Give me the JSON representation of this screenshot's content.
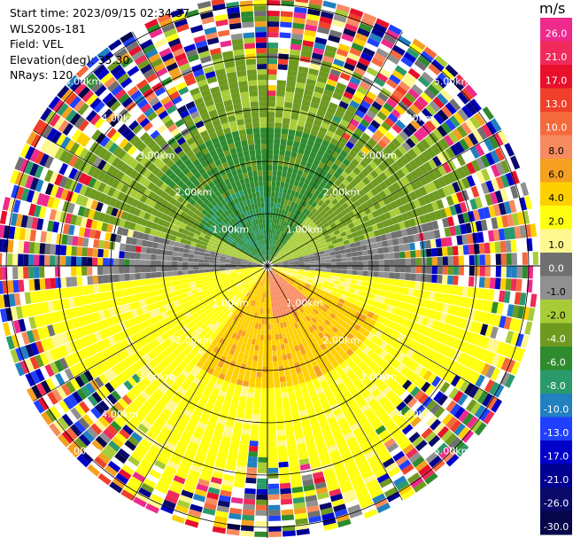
{
  "info": {
    "start_time": "Start time: 2023/09/15 02:34:37",
    "station": "WLS200s-181",
    "field": "Field: VEL",
    "elevation": "Elevation(deg): 35.30",
    "nrays": "NRays: 120"
  },
  "chart_data": {
    "type": "ppi",
    "field": "VEL",
    "units": "m/s",
    "nrays": 120,
    "range_rings_km": [
      1.0,
      2.0,
      3.0,
      4.0,
      5.0
    ],
    "ring_label_suffix": "km",
    "colorbar": {
      "unit": "m/s",
      "ticks": [
        "26.0",
        "21.0",
        "17.0",
        "13.0",
        "10.0",
        "8.0",
        "6.0",
        "4.0",
        "2.0",
        "1.0",
        "0.0",
        "-1.0",
        "-2.0",
        "-4.0",
        "-6.0",
        "-8.0",
        "-10.0",
        "-13.0",
        "-17.0",
        "-21.0",
        "-26.0",
        "-30.0"
      ],
      "colors": [
        "#ee2a8c",
        "#f02a5a",
        "#e8102c",
        "#f0402a",
        "#f56a3c",
        "#f88a60",
        "#f5a020",
        "#ffd000",
        "#ffff10",
        "#fff790",
        "#707070",
        "#909090",
        "#a8cc38",
        "#6e9a20",
        "#2e8b2e",
        "#2a9a6a",
        "#2080c0",
        "#2040ff",
        "#0000c8",
        "#000090",
        "#0a0a6a",
        "#06064a"
      ]
    }
  }
}
